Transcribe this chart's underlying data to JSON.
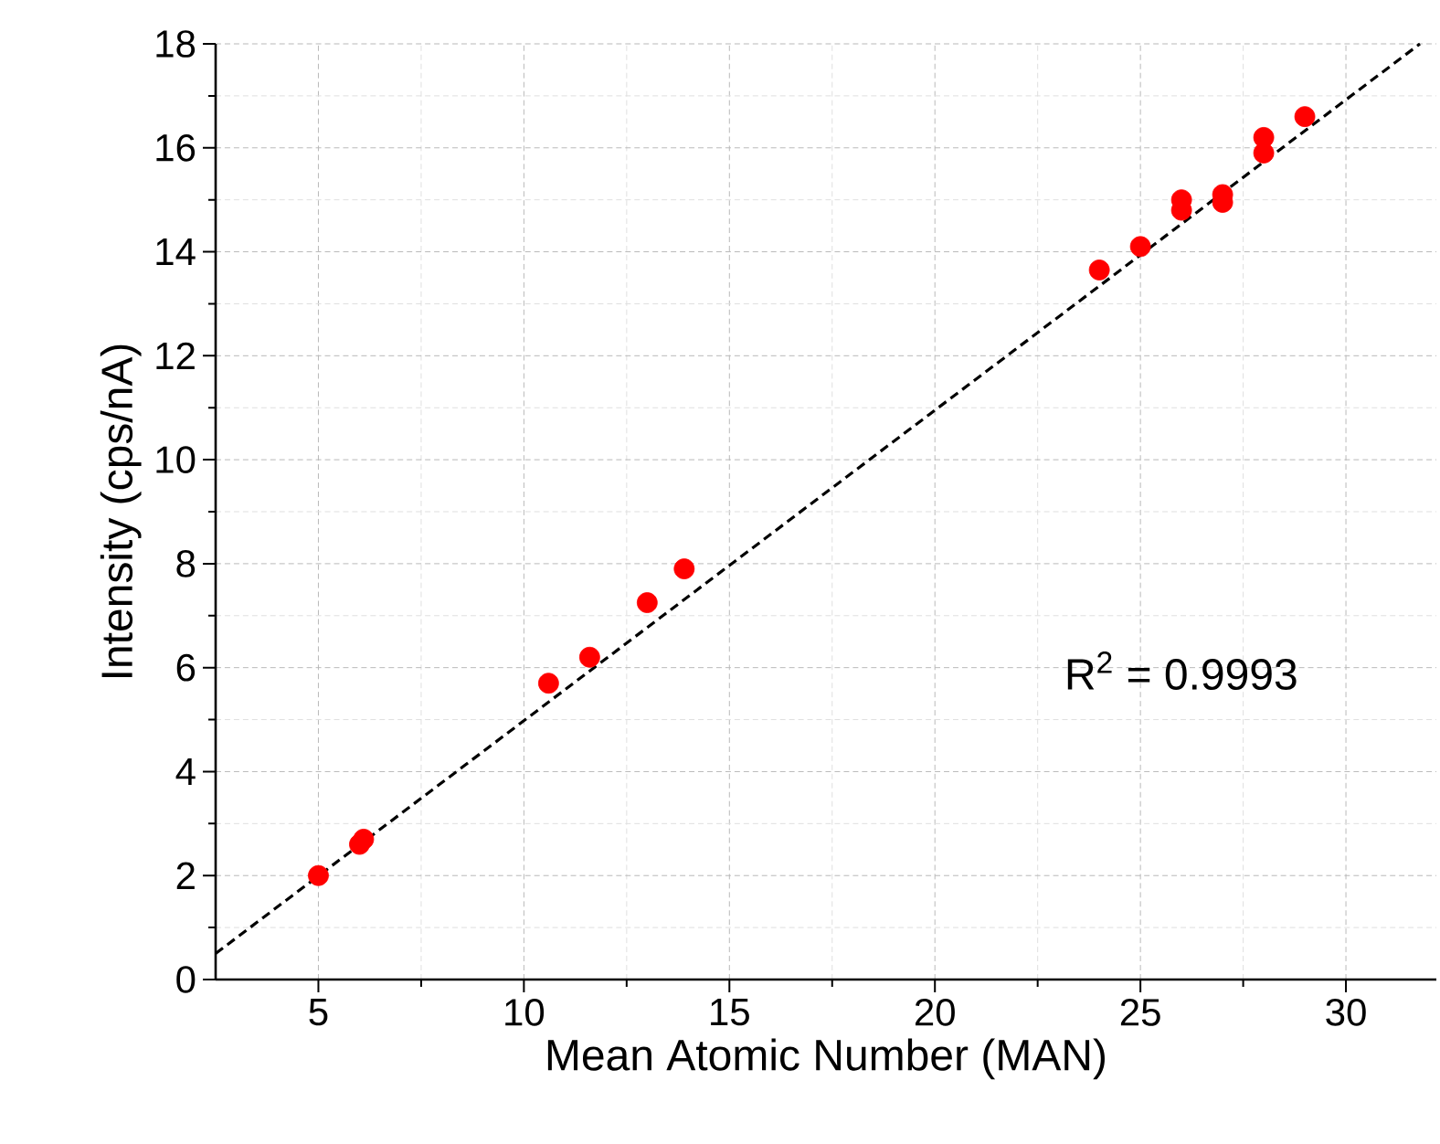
{
  "chart_data": {
    "type": "scatter",
    "xlabel": "Mean Atomic Number (MAN)",
    "ylabel": "Intensity (cps/nA)",
    "xlim": [
      2.5,
      32.2
    ],
    "ylim": [
      0,
      18
    ],
    "xticks": [
      5,
      10,
      15,
      20,
      25,
      30
    ],
    "yticks": [
      0,
      2,
      4,
      6,
      8,
      10,
      12,
      14,
      16,
      18
    ],
    "grid": true,
    "marker": "circle",
    "series": [
      {
        "color": "#ff0000",
        "x": [
          5,
          6,
          6.1,
          10.6,
          11.6,
          13,
          13.9,
          24,
          25,
          26,
          26,
          27,
          27,
          28,
          28,
          29
        ],
        "values": [
          2.0,
          2.6,
          2.7,
          5.7,
          6.2,
          7.25,
          7.9,
          13.65,
          14.1,
          14.8,
          15.0,
          14.95,
          15.1,
          15.9,
          16.2,
          16.6
        ]
      },
      {
        "type": "line",
        "color": "#000000",
        "marker": "none",
        "line_style": "dashed",
        "x": [
          2.5,
          31.8
        ],
        "values": [
          0.5,
          18
        ]
      }
    ],
    "annotations": [
      "R$^{2}$ = 0.9993"
    ]
  }
}
